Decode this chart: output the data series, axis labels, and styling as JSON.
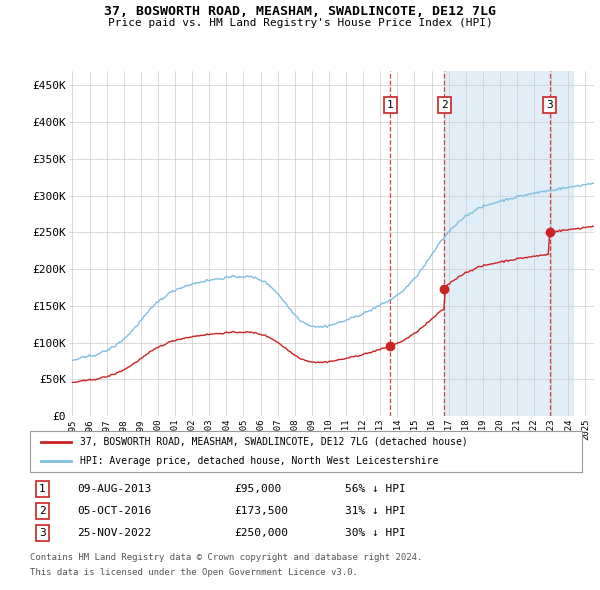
{
  "title": "37, BOSWORTH ROAD, MEASHAM, SWADLINCOTE, DE12 7LG",
  "subtitle": "Price paid vs. HM Land Registry's House Price Index (HPI)",
  "legend_line1": "37, BOSWORTH ROAD, MEASHAM, SWADLINCOTE, DE12 7LG (detached house)",
  "legend_line2": "HPI: Average price, detached house, North West Leicestershire",
  "footer1": "Contains HM Land Registry data © Crown copyright and database right 2024.",
  "footer2": "This data is licensed under the Open Government Licence v3.0.",
  "transactions": [
    {
      "num": 1,
      "date": "09-AUG-2013",
      "price": "£95,000",
      "change": "56% ↓ HPI",
      "year_x": 2013.6
    },
    {
      "num": 2,
      "date": "05-OCT-2016",
      "price": "£173,500",
      "change": "31% ↓ HPI",
      "year_x": 2016.75
    },
    {
      "num": 3,
      "date": "25-NOV-2022",
      "price": "£250,000",
      "change": "30% ↓ HPI",
      "year_x": 2022.9
    }
  ],
  "hpi_color": "#7fbfdf",
  "price_color": "#cc2222",
  "vline_color": "#cc2222",
  "highlight_fill": "#daeaf5",
  "ylim": [
    0,
    470000
  ],
  "xlim_start": 1994.8,
  "xlim_end": 2025.5,
  "yticks": [
    0,
    50000,
    100000,
    150000,
    200000,
    250000,
    300000,
    350000,
    400000,
    450000
  ],
  "ytick_labels": [
    "£0",
    "£50K",
    "£100K",
    "£150K",
    "£200K",
    "£250K",
    "£300K",
    "£350K",
    "£400K",
    "£450K"
  ],
  "xticks": [
    1995,
    1996,
    1997,
    1998,
    1999,
    2000,
    2001,
    2002,
    2003,
    2004,
    2005,
    2006,
    2007,
    2008,
    2009,
    2010,
    2011,
    2012,
    2013,
    2014,
    2015,
    2016,
    2017,
    2018,
    2019,
    2020,
    2021,
    2022,
    2023,
    2024,
    2025
  ]
}
